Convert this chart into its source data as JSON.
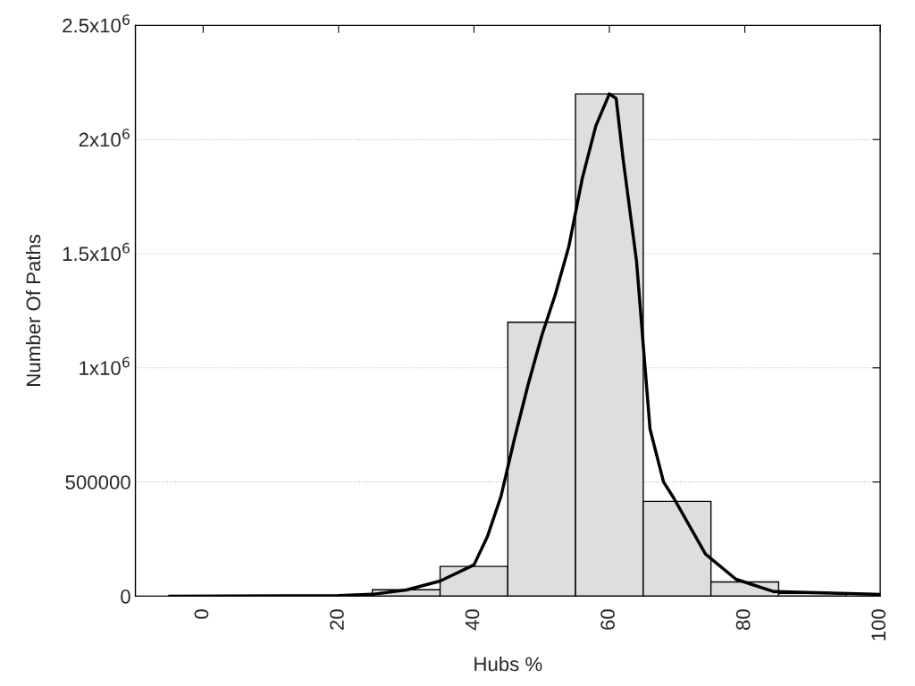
{
  "chart_data": {
    "type": "histogram",
    "xlabel": "Hubs %",
    "ylabel": "Number Of Paths",
    "bins": [
      -5,
      5,
      15,
      25,
      35,
      45,
      55,
      65,
      75,
      85,
      95
    ],
    "values": [
      2000,
      2000,
      3000,
      28000,
      130000,
      1200000,
      2200000,
      415000,
      62000,
      12000
    ],
    "color": "#dedede",
    "series": [
      {
        "type": "line",
        "color": "#000000",
        "x": [
          -5,
          20,
          25,
          30,
          35,
          40,
          42,
          44,
          46,
          48,
          50,
          52,
          54,
          56,
          58,
          60,
          61,
          62,
          64,
          66,
          68,
          69.5,
          74.2,
          78.7,
          84.3,
          99,
          100
        ],
        "values": [
          0,
          3000,
          8000,
          27000,
          66000,
          137000,
          262000,
          438000,
          692000,
          927000,
          1140000,
          1320000,
          1530000,
          1830000,
          2060000,
          2200000,
          2180000,
          1920000,
          1470000,
          732000,
          500000,
          430000,
          184000,
          74000,
          20000,
          8000,
          7000
        ]
      }
    ],
    "xlim": [
      -10,
      100
    ],
    "xticks": [
      0,
      20,
      40,
      60,
      80,
      100
    ],
    "ylim": [
      0,
      2500000
    ],
    "yticks": [
      {
        "value": 0,
        "label": "0"
      },
      {
        "value": 500000,
        "label": "500000"
      },
      {
        "value": 1000000,
        "label": "1x10$^{6}$"
      },
      {
        "value": 1500000,
        "label": "1.5x10$^{6}$"
      },
      {
        "value": 2000000,
        "label": "2x10$^{6}$"
      },
      {
        "value": 2500000,
        "label": "2.5x10$^{6}$"
      }
    ],
    "grid": "y",
    "line_style": "solid",
    "marker": "none"
  }
}
